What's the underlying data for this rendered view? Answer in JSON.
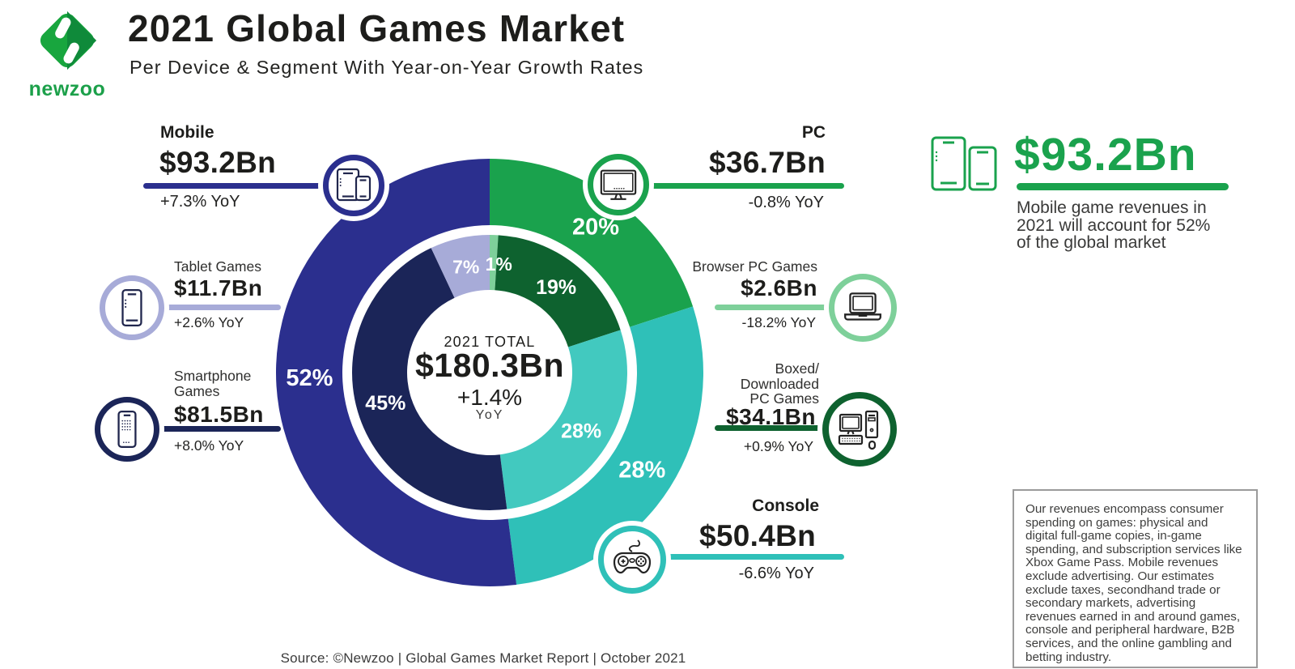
{
  "header": {
    "logo_text": "newzoo",
    "title": "2021 Global Games Market",
    "subtitle": "Per Device & Segment With Year-on-Year Growth Rates"
  },
  "center": {
    "total_label": "2021 TOTAL",
    "total_value": "$180.3Bn",
    "growth": "+1.4%",
    "growth_unit": "YoY"
  },
  "callouts": {
    "mobile": {
      "label": "Mobile",
      "value": "$93.2Bn",
      "growth": "+7.3% YoY"
    },
    "tablet": {
      "label": "Tablet Games",
      "value": "$11.7Bn",
      "growth": "+2.6% YoY"
    },
    "smartphone": {
      "label": "Smartphone\nGames",
      "value": "$81.5Bn",
      "growth": "+8.0% YoY"
    },
    "pc": {
      "label": "PC",
      "value": "$36.7Bn",
      "growth": "-0.8% YoY"
    },
    "browser": {
      "label": "Browser PC Games",
      "value": "$2.6Bn",
      "growth": "-18.2% YoY"
    },
    "boxed": {
      "label": "Boxed/\nDownloaded\nPC Games",
      "value": "$34.1Bn",
      "growth": "+0.9% YoY"
    },
    "console": {
      "label": "Console",
      "value": "$50.4Bn",
      "growth": "-6.6% YoY"
    }
  },
  "highlight": {
    "value": "$93.2Bn",
    "description": "Mobile game revenues in\n2021 will account for 52%\nof the global market"
  },
  "note": "Our revenues encompass consumer\nspending on games: physical and\ndigital full-game copies, in-game\nspending, and subscription services like\nXbox Game Pass. Mobile revenues\nexclude advertising. Our estimates\nexclude taxes, secondhand trade or\nsecondary markets, advertising\nrevenues earned in and around games,\nconsole and peripheral hardware, B2B\nservices, and the online gambling and\nbetting industry.",
  "source": "Source: ©Newzoo | Global Games Market Report | October 2021",
  "chart_data": {
    "type": "donut",
    "title": "2021 Global Games Market",
    "total": {
      "label": "2021 TOTAL",
      "value_bn": 180.3,
      "yoy_pct": 1.4
    },
    "start_angle_deg": 0,
    "direction": "clockwise",
    "outer_ring": [
      {
        "name": "PC",
        "pct": 20,
        "value_bn": 36.7,
        "yoy_pct": -0.8,
        "color": "#1aa24d",
        "label": "20%"
      },
      {
        "name": "Console",
        "pct": 28,
        "value_bn": 50.4,
        "yoy_pct": -6.6,
        "color": "#2fc0b8",
        "label": "28%"
      },
      {
        "name": "Mobile",
        "pct": 52,
        "value_bn": 93.2,
        "yoy_pct": 7.3,
        "color": "#2b2f8e",
        "label": "52%"
      }
    ],
    "inner_ring": [
      {
        "name": "Browser PC Games",
        "pct": 1,
        "value_bn": 2.6,
        "yoy_pct": -18.2,
        "color": "#7ed09a",
        "label": "1%"
      },
      {
        "name": "Boxed/Downloaded PC Games",
        "pct": 19,
        "value_bn": 34.1,
        "yoy_pct": 0.9,
        "color": "#0e622f",
        "label": "19%"
      },
      {
        "name": "Console",
        "pct": 28,
        "value_bn": 50.4,
        "yoy_pct": -6.6,
        "color": "#42c9bf",
        "label": "28%"
      },
      {
        "name": "Smartphone Games",
        "pct": 45,
        "value_bn": 81.5,
        "yoy_pct": 8.0,
        "color": "#1b2558",
        "label": "45%"
      },
      {
        "name": "Tablet Games",
        "pct": 7,
        "value_bn": 11.7,
        "yoy_pct": 2.6,
        "color": "#a7abd8",
        "label": "7%"
      }
    ]
  }
}
